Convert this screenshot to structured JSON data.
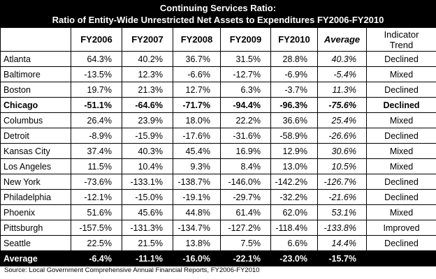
{
  "title": {
    "line1": "Continuing Services Ratio:",
    "line2": "Ratio of Entity-Wide Unrestricted Net Assets to Expenditures FY2006-FY2010"
  },
  "columns": {
    "city": "",
    "fy2006": "FY2006",
    "fy2007": "FY2007",
    "fy2008": "FY2008",
    "fy2009": "FY2009",
    "fy2010": "FY2010",
    "average": "Average",
    "indicator_line1": "Indicator",
    "indicator_line2": "Trend"
  },
  "rows": [
    {
      "city": "Atlanta",
      "fy2006": "64.3%",
      "fy2007": "40.2%",
      "fy2008": "36.7%",
      "fy2009": "31.5%",
      "fy2010": "28.8%",
      "average": "40.3%",
      "trend": "Declined"
    },
    {
      "city": "Baltimore",
      "fy2006": "-13.5%",
      "fy2007": "12.3%",
      "fy2008": "-6.6%",
      "fy2009": "-12.7%",
      "fy2010": "-6.9%",
      "average": "-5.4%",
      "trend": "Mixed"
    },
    {
      "city": "Boston",
      "fy2006": "19.7%",
      "fy2007": "21.3%",
      "fy2008": "12.7%",
      "fy2009": "6.3%",
      "fy2010": "-3.7%",
      "average": "11.3%",
      "trend": "Declined"
    },
    {
      "city": "Chicago",
      "fy2006": "-51.1%",
      "fy2007": "-64.6%",
      "fy2008": "-71.7%",
      "fy2009": "-94.4%",
      "fy2010": "-96.3%",
      "average": "-75.6%",
      "trend": "Declined"
    },
    {
      "city": "Columbus",
      "fy2006": "26.4%",
      "fy2007": "23.9%",
      "fy2008": "18.0%",
      "fy2009": "22.2%",
      "fy2010": "36.6%",
      "average": "25.4%",
      "trend": "Mixed"
    },
    {
      "city": "Detroit",
      "fy2006": "-8.9%",
      "fy2007": "-15.9%",
      "fy2008": "-17.6%",
      "fy2009": "-31.6%",
      "fy2010": "-58.9%",
      "average": "-26.6%",
      "trend": "Declined"
    },
    {
      "city": "Kansas City",
      "fy2006": "37.4%",
      "fy2007": "40.3%",
      "fy2008": "45.4%",
      "fy2009": "16.9%",
      "fy2010": "12.9%",
      "average": "30.6%",
      "trend": "Mixed"
    },
    {
      "city": "Los Angeles",
      "fy2006": "11.5%",
      "fy2007": "10.4%",
      "fy2008": "9.3%",
      "fy2009": "8.4%",
      "fy2010": "13.0%",
      "average": "10.5%",
      "trend": "Mixed"
    },
    {
      "city": "New York",
      "fy2006": "-73.6%",
      "fy2007": "-133.1%",
      "fy2008": "-138.7%",
      "fy2009": "-146.0%",
      "fy2010": "-142.2%",
      "average": "-126.7%",
      "trend": "Declined"
    },
    {
      "city": "Philadelphia",
      "fy2006": "-12.1%",
      "fy2007": "-15.0%",
      "fy2008": "-19.1%",
      "fy2009": "-29.7%",
      "fy2010": "-32.2%",
      "average": "-21.6%",
      "trend": "Declined"
    },
    {
      "city": "Phoenix",
      "fy2006": "51.6%",
      "fy2007": "45.6%",
      "fy2008": "44.8%",
      "fy2009": "61.4%",
      "fy2010": "62.0%",
      "average": "53.1%",
      "trend": "Mixed"
    },
    {
      "city": "Pittsburgh",
      "fy2006": "-157.5%",
      "fy2007": "-131.3%",
      "fy2008": "-134.7%",
      "fy2009": "-127.2%",
      "fy2010": "-118.4%",
      "average": "-133.8%",
      "trend": "Improved"
    },
    {
      "city": "Seattle",
      "fy2006": "22.5%",
      "fy2007": "21.5%",
      "fy2008": "13.8%",
      "fy2009": "7.5%",
      "fy2010": "6.6%",
      "average": "14.4%",
      "trend": "Declined"
    }
  ],
  "average_row": {
    "city": "Average",
    "fy2006": "-6.4%",
    "fy2007": "-11.1%",
    "fy2008": "-16.0%",
    "fy2009": "-22.1%",
    "fy2010": "-23.0%",
    "average": "-15.7%",
    "trend": ""
  },
  "source": "Source:  Local Government Comprehensive Annual Financial Reports, FY2006-FY2010",
  "colors": {
    "header_bg": "#000000",
    "header_text": "#ffffff",
    "border": "#000000"
  }
}
